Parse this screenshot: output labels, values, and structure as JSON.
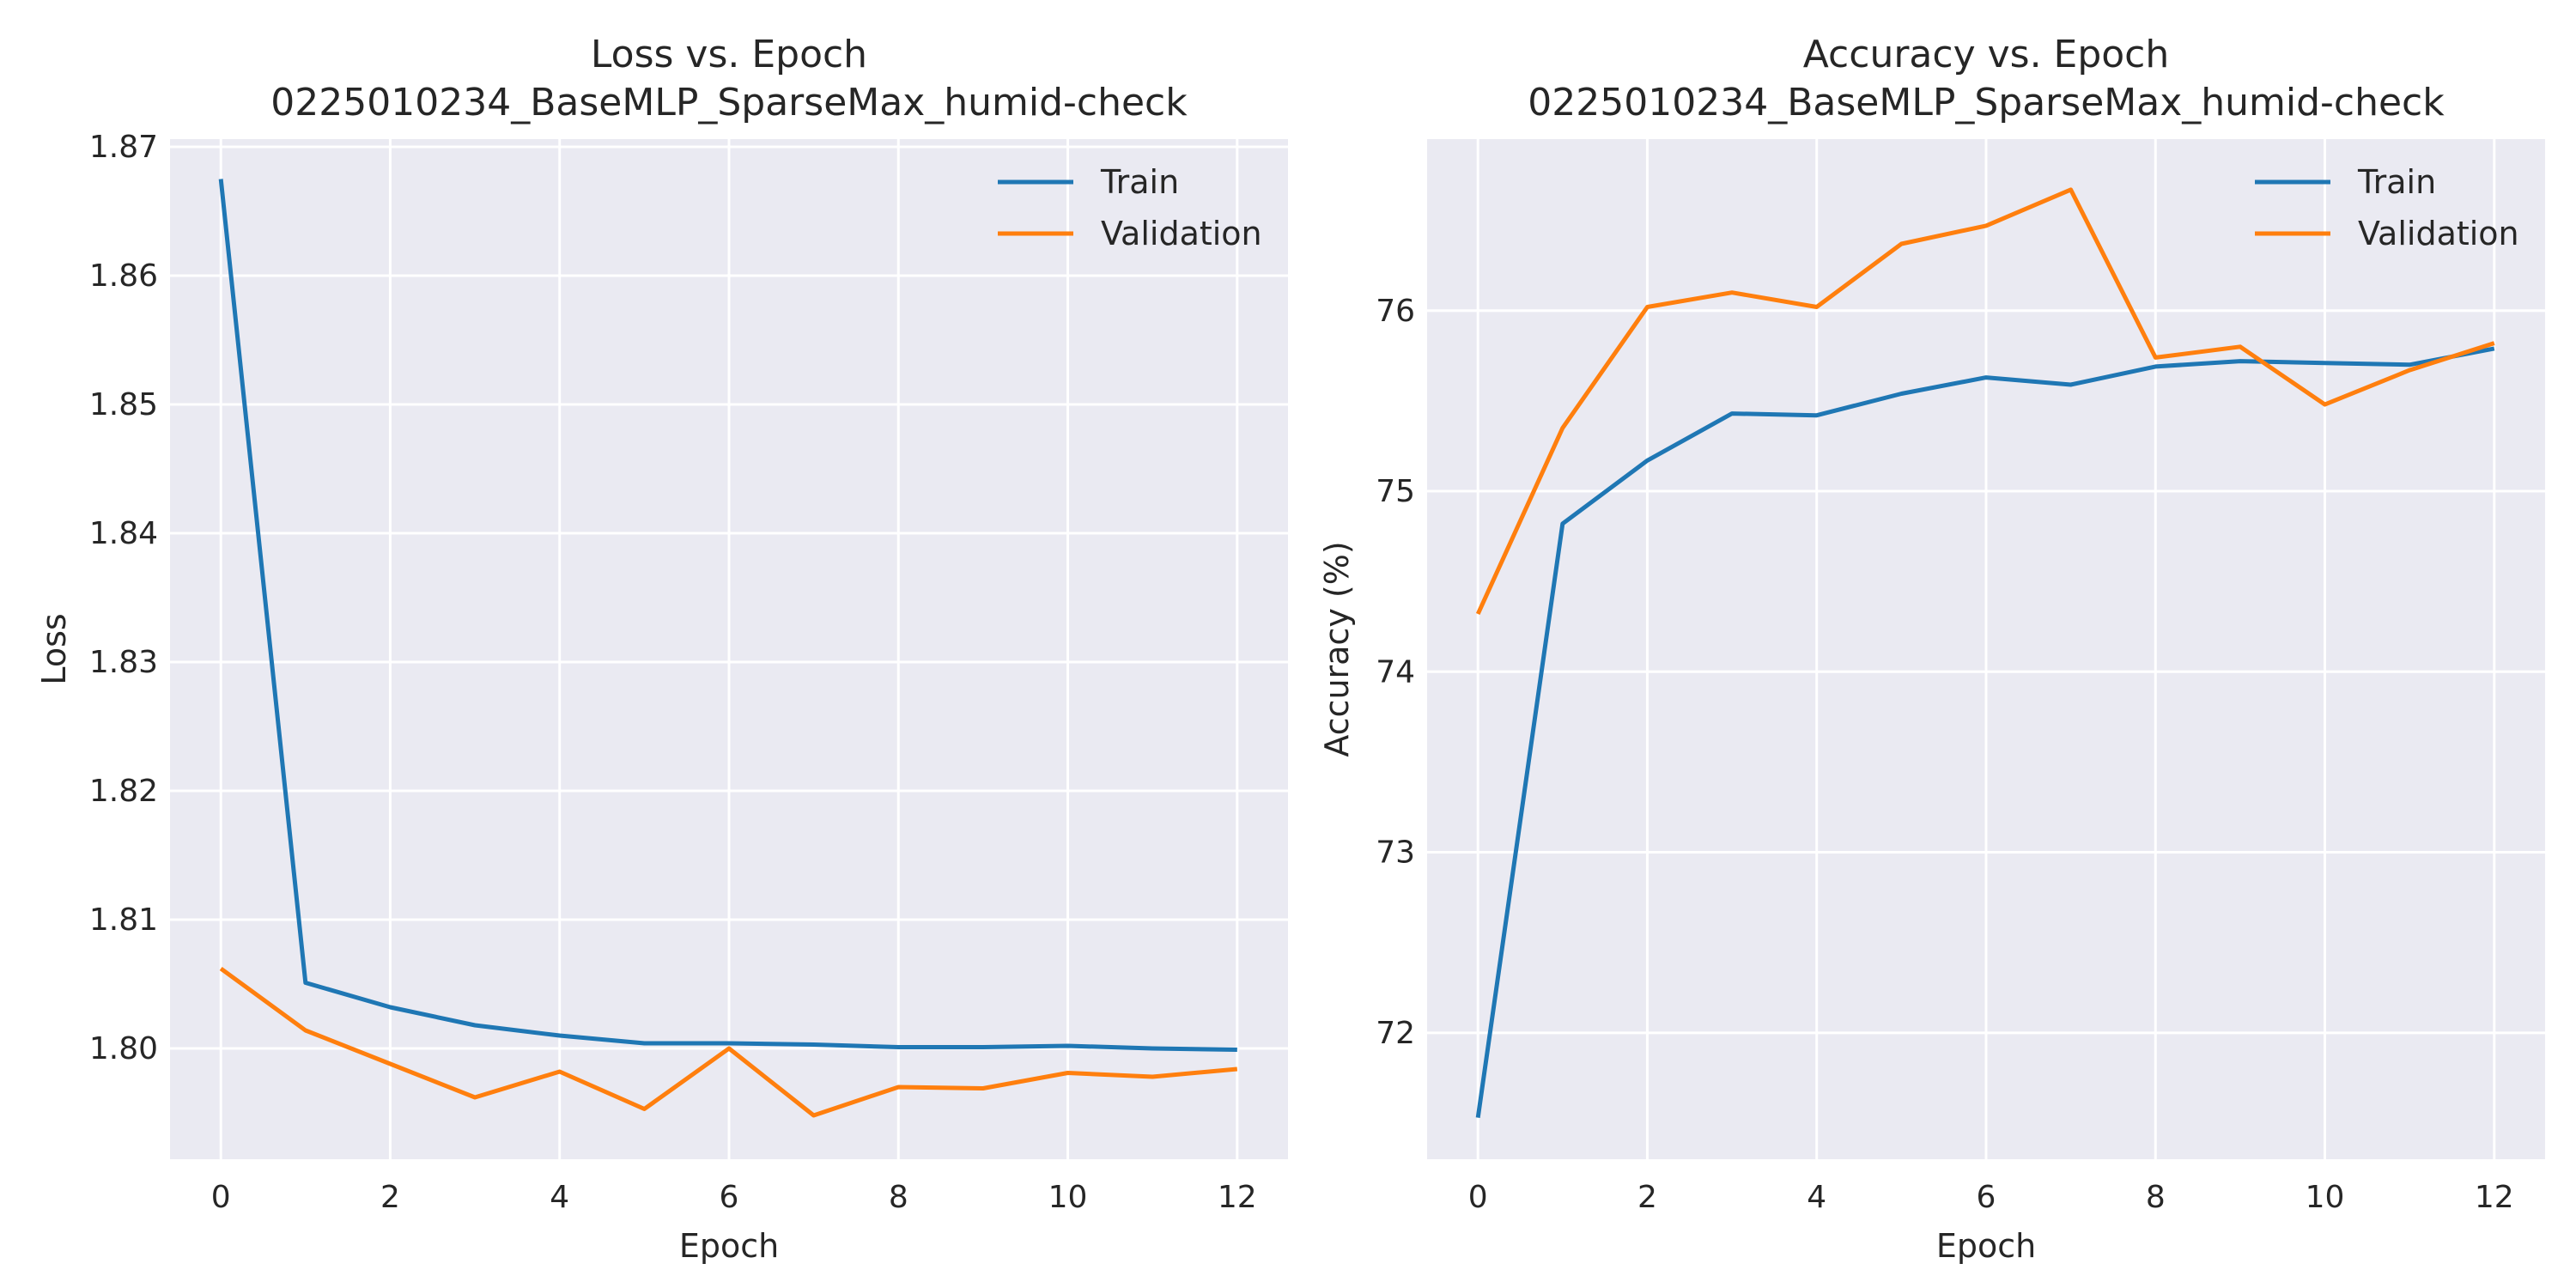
{
  "chart_data": [
    {
      "type": "line",
      "title": "Loss vs. Epoch",
      "subtitle": "0225010234_BaseMLP_SparseMax_humid-check",
      "xlabel": "Epoch",
      "ylabel": "Loss",
      "xlim": [
        -0.6,
        12.6
      ],
      "ylim": [
        1.7914,
        1.8706
      ],
      "x_ticks": [
        0,
        2,
        4,
        6,
        8,
        10,
        12
      ],
      "y_ticks": [
        1.8,
        1.81,
        1.82,
        1.83,
        1.84,
        1.85,
        1.86,
        1.87
      ],
      "y_tick_labels": [
        "1.80",
        "1.81",
        "1.82",
        "1.83",
        "1.84",
        "1.85",
        "1.86",
        "1.87"
      ],
      "grid": true,
      "legend_position": "top-right",
      "x": [
        0,
        1,
        2,
        3,
        4,
        5,
        6,
        7,
        8,
        9,
        10,
        11,
        12
      ],
      "series": [
        {
          "name": "Train",
          "color": "#1f77b4",
          "values": [
            1.8675,
            1.8051,
            1.8032,
            1.8018,
            1.801,
            1.8004,
            1.8004,
            1.8003,
            1.8001,
            1.8001,
            1.8002,
            1.8,
            1.7999
          ]
        },
        {
          "name": "Validation",
          "color": "#ff7f0e",
          "values": [
            1.8062,
            1.8014,
            1.7988,
            1.7962,
            1.7982,
            1.7953,
            1.8,
            1.7948,
            1.797,
            1.7969,
            1.7981,
            1.7978,
            1.7984
          ]
        }
      ]
    },
    {
      "type": "line",
      "title": "Accuracy vs. Epoch",
      "subtitle": "0225010234_BaseMLP_SparseMax_humid-check",
      "xlabel": "Epoch",
      "ylabel": "Accuracy (%)",
      "xlim": [
        -0.6,
        12.6
      ],
      "ylim": [
        71.3,
        76.95
      ],
      "x_ticks": [
        0,
        2,
        4,
        6,
        8,
        10,
        12
      ],
      "y_ticks": [
        72,
        73,
        74,
        75,
        76
      ],
      "y_tick_labels": [
        "72",
        "73",
        "74",
        "75",
        "76"
      ],
      "grid": true,
      "legend_position": "top-right",
      "x": [
        0,
        1,
        2,
        3,
        4,
        5,
        6,
        7,
        8,
        9,
        10,
        11,
        12
      ],
      "series": [
        {
          "name": "Train",
          "color": "#1f77b4",
          "values": [
            71.53,
            74.82,
            75.17,
            75.43,
            75.42,
            75.54,
            75.63,
            75.59,
            75.69,
            75.72,
            75.71,
            75.7,
            75.79
          ]
        },
        {
          "name": "Validation",
          "color": "#ff7f0e",
          "values": [
            74.32,
            75.35,
            76.02,
            76.1,
            76.02,
            76.37,
            76.47,
            76.67,
            75.74,
            75.8,
            75.48,
            75.67,
            75.82
          ]
        }
      ]
    }
  ],
  "colors": {
    "plot_background": "#eaeaf2",
    "grid": "#ffffff",
    "text": "#262626"
  }
}
